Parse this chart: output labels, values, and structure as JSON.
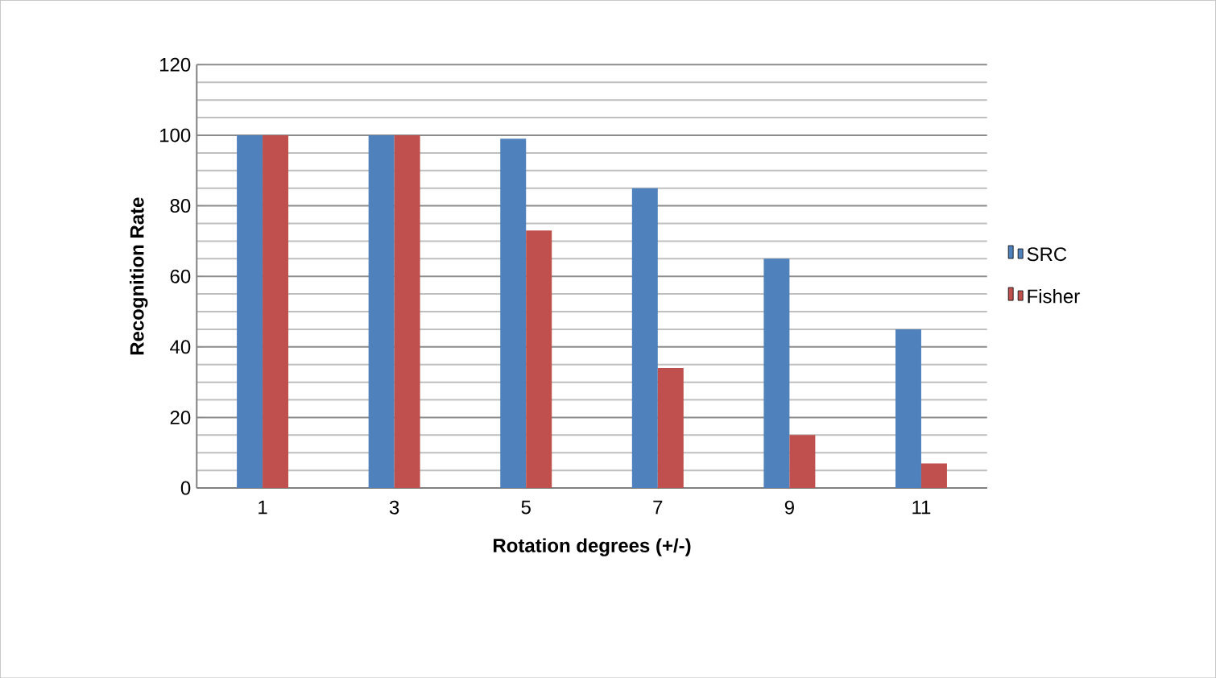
{
  "chart_data": {
    "type": "bar",
    "xlabel": "Rotation degrees (+/-)",
    "ylabel": "Recognition Rate",
    "categories": [
      "1",
      "3",
      "5",
      "7",
      "9",
      "11"
    ],
    "series": [
      {
        "name": "SRC",
        "color": "#4f81bd",
        "values": [
          100,
          100,
          99,
          85,
          65,
          45
        ]
      },
      {
        "name": "Fisher",
        "color": "#c0504d",
        "values": [
          100,
          100,
          73,
          34,
          15,
          7
        ]
      }
    ],
    "ylim": [
      0,
      120
    ],
    "yticks": [
      0,
      20,
      40,
      60,
      80,
      100,
      120
    ],
    "grid": "y",
    "legend": "right"
  }
}
